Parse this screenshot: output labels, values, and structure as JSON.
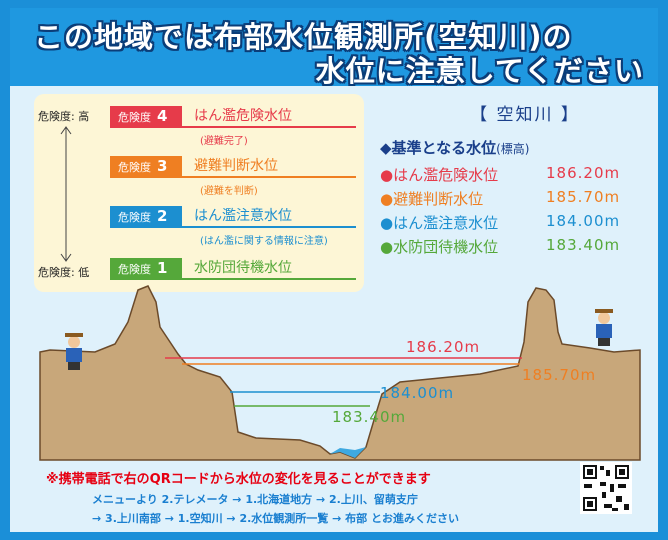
{
  "header": {
    "title_lines": [
      "この地域では布部水位観測所(空知川)の",
      "水位に注意してください"
    ]
  },
  "danger_scale": {
    "high": "危険度: 高",
    "low": "危険度: 低"
  },
  "levels": [
    {
      "badge": "危険度",
      "level": "4",
      "name": "はん濫危険水位",
      "note": "(避難完了)"
    },
    {
      "badge": "危険度",
      "level": "3",
      "name": "避難判断水位",
      "note": "(避難を判断)"
    },
    {
      "badge": "危険度",
      "level": "2",
      "name": "はん濫注意水位",
      "note": "(はん濫に関する情報に注意)"
    },
    {
      "badge": "危険度",
      "level": "1",
      "name": "水防団待機水位"
    }
  ],
  "legend": {
    "river": "【 空知川 】",
    "heading": "◆基準となる水位",
    "heading_note": "(標高)",
    "items": [
      {
        "name": "●はん濫危険水位",
        "value": "186.20m"
      },
      {
        "name": "●避難判断水位",
        "value": "185.70m"
      },
      {
        "name": "●はん濫注意水位",
        "value": "184.00m"
      },
      {
        "name": "●水防団待機水位",
        "value": "183.40m"
      }
    ]
  },
  "footer": {
    "notice": "※携帯電話で右のQRコードから水位の変化を見ることができます",
    "steps": [
      "メニューより 2.テレメータ → 1.北海道地方 → 2.上川、留萌支庁",
      "→ 3.上川南部 → 1.空知川 → 2.水位観測所一覧 → 布部 とお進みください"
    ]
  }
}
